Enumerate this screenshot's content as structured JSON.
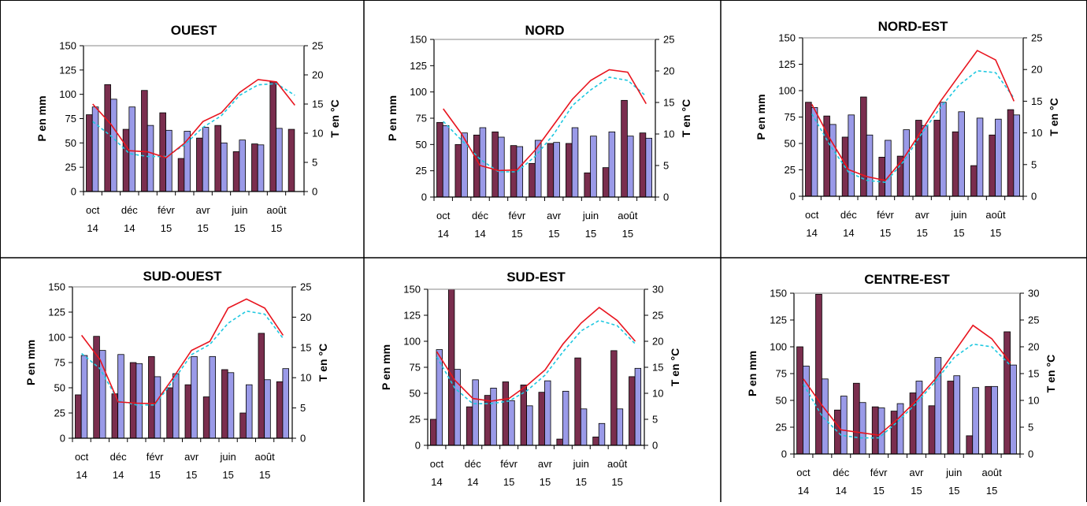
{
  "colors": {
    "bar_a": "#7a2e4e",
    "bar_b": "#9a9ae8",
    "line_red": "#e8141e",
    "line_cyan": "#1ec8e0"
  },
  "chart_data": [
    {
      "type": "bar",
      "title": "OUEST",
      "ylabel": "P en mm",
      "y2label": "T en °C",
      "ylim": [
        0,
        150
      ],
      "y2lim": [
        0,
        25
      ],
      "yticks": [
        "0",
        "25",
        "50",
        "75",
        "100",
        "125",
        "150"
      ],
      "y2ticks": [
        "0",
        "5",
        "10",
        "15",
        "20",
        "25"
      ],
      "xticks": [
        {
          "m": "oct",
          "y": "14"
        },
        {
          "m": "déc",
          "y": "14"
        },
        {
          "m": "févr",
          "y": "15"
        },
        {
          "m": "avr",
          "y": "15"
        },
        {
          "m": "juin",
          "y": "15"
        },
        {
          "m": "août",
          "y": "15"
        }
      ],
      "series": [
        {
          "values": [
            79,
            110,
            64,
            104,
            81,
            34,
            55,
            68,
            41,
            49,
            113,
            64
          ]
        },
        {
          "values": [
            87,
            95,
            87,
            68,
            63,
            62,
            66,
            50,
            53,
            48,
            65,
            null
          ]
        },
        {
          "values": [
            15,
            11.5,
            7,
            6.8,
            5.8,
            8.3,
            12,
            13.5,
            17,
            19.2,
            18.8,
            14.8
          ]
        },
        {
          "values": [
            12,
            9.5,
            6.5,
            6,
            6,
            8,
            11,
            13,
            16.5,
            18.3,
            18.5,
            16.5
          ]
        }
      ]
    },
    {
      "type": "bar",
      "title": "NORD",
      "ylabel": "P en mm",
      "y2label": "T en °C",
      "ylim": [
        0,
        150
      ],
      "y2lim": [
        0,
        25
      ],
      "yticks": [
        "0",
        "25",
        "50",
        "75",
        "100",
        "125",
        "150"
      ],
      "y2ticks": [
        "0",
        "5",
        "10",
        "15",
        "20",
        "25"
      ],
      "xticks": [
        {
          "m": "oct",
          "y": "14"
        },
        {
          "m": "déc",
          "y": "14"
        },
        {
          "m": "févr",
          "y": "15"
        },
        {
          "m": "avr",
          "y": "15"
        },
        {
          "m": "juin",
          "y": "15"
        },
        {
          "m": "août",
          "y": "15"
        }
      ],
      "series": [
        {
          "values": [
            71,
            50,
            59,
            62,
            49,
            32,
            51,
            51,
            23,
            28,
            92,
            61
          ]
        },
        {
          "values": [
            68,
            61,
            66,
            57,
            48,
            54,
            52,
            66,
            58,
            62,
            58,
            56
          ]
        },
        {
          "values": [
            14,
            10,
            5,
            4.2,
            4.3,
            7.5,
            11.5,
            15.5,
            18.5,
            20.2,
            19.8,
            14.8
          ]
        },
        {
          "values": [
            12,
            9,
            6,
            4,
            4,
            6.5,
            10,
            14.5,
            17,
            19,
            18.5,
            16
          ]
        }
      ]
    },
    {
      "type": "bar",
      "title": "NORD-EST",
      "ylabel": "P en mm",
      "y2label": "T en °C",
      "ylim": [
        0,
        150
      ],
      "y2lim": [
        0,
        25
      ],
      "yticks": [
        "0",
        "25",
        "50",
        "75",
        "100",
        "125",
        "150"
      ],
      "y2ticks": [
        "0",
        "5",
        "10",
        "15",
        "20",
        "25"
      ],
      "xticks": [
        {
          "m": "oct",
          "y": "14"
        },
        {
          "m": "déc",
          "y": "14"
        },
        {
          "m": "févr",
          "y": "15"
        },
        {
          "m": "avr",
          "y": "15"
        },
        {
          "m": "juin",
          "y": "15"
        },
        {
          "m": "août",
          "y": "15"
        }
      ],
      "series": [
        {
          "values": [
            89,
            76,
            56,
            94,
            37,
            38,
            72,
            72,
            61,
            29,
            58,
            82
          ]
        },
        {
          "values": [
            84,
            68,
            77,
            58,
            53,
            63,
            67,
            89,
            80,
            74,
            73,
            77
          ]
        },
        {
          "values": [
            14.5,
            9,
            4.2,
            3.1,
            2.5,
            6,
            10.5,
            15,
            19,
            23,
            21.5,
            15
          ]
        },
        {
          "values": [
            13,
            8,
            3.8,
            2.5,
            2.2,
            5.5,
            10,
            14,
            17.5,
            19.8,
            19.5,
            15.5
          ]
        }
      ]
    },
    {
      "type": "bar",
      "title": "SUD-OUEST",
      "ylabel": "P en mm",
      "y2label": "T en °C",
      "ylim": [
        0,
        150
      ],
      "y2lim": [
        0,
        25
      ],
      "yticks": [
        "0",
        "25",
        "50",
        "75",
        "100",
        "125",
        "150"
      ],
      "y2ticks": [
        "0",
        "5",
        "10",
        "15",
        "20",
        "25"
      ],
      "xticks": [
        {
          "m": "oct",
          "y": "14"
        },
        {
          "m": "déc",
          "y": "14"
        },
        {
          "m": "févr",
          "y": "15"
        },
        {
          "m": "avr",
          "y": "15"
        },
        {
          "m": "juin",
          "y": "15"
        },
        {
          "m": "août",
          "y": "15"
        }
      ],
      "series": [
        {
          "values": [
            43,
            101,
            44,
            75,
            81,
            50,
            53,
            41,
            68,
            25,
            104,
            56
          ]
        },
        {
          "values": [
            82,
            87,
            83,
            74,
            61,
            64,
            81,
            81,
            65,
            53,
            58,
            69
          ]
        },
        {
          "values": [
            17,
            13,
            6,
            5.8,
            5.7,
            10,
            14.5,
            16,
            21.5,
            23,
            21.5,
            17
          ]
        },
        {
          "values": [
            14,
            11.5,
            6.2,
            5.5,
            5.5,
            9.5,
            13.8,
            15.5,
            19,
            21,
            20.5,
            16.5
          ]
        }
      ]
    },
    {
      "type": "bar",
      "title": "SUD-EST",
      "ylabel": "P en mm",
      "y2label": "T en °C",
      "ylim": [
        0,
        150
      ],
      "y2lim": [
        0,
        30
      ],
      "yticks": [
        "0",
        "25",
        "50",
        "75",
        "100",
        "125",
        "150"
      ],
      "y2ticks": [
        "0",
        "5",
        "10",
        "15",
        "20",
        "25",
        "30"
      ],
      "xticks": [
        {
          "m": "oct",
          "y": "14"
        },
        {
          "m": "déc",
          "y": "14"
        },
        {
          "m": "févr",
          "y": "15"
        },
        {
          "m": "avr",
          "y": "15"
        },
        {
          "m": "juin",
          "y": "15"
        },
        {
          "m": "août",
          "y": "15"
        }
      ],
      "series": [
        {
          "values": [
            25,
            152,
            37,
            48,
            61,
            58,
            51,
            6,
            84,
            8,
            91,
            66
          ]
        },
        {
          "values": [
            92,
            73,
            63,
            55,
            43,
            38,
            62,
            52,
            35,
            21,
            35,
            74
          ]
        },
        {
          "values": [
            18,
            12.5,
            9,
            8.5,
            9,
            11.5,
            14.5,
            19.5,
            23.5,
            26.5,
            24,
            20
          ]
        },
        {
          "values": [
            17,
            11,
            8,
            8,
            8.5,
            10.5,
            13.5,
            18,
            22,
            24,
            23,
            19.5
          ]
        }
      ]
    },
    {
      "type": "bar",
      "title": "CENTRE-EST",
      "ylabel": "P en mm",
      "y2label": "T en °C",
      "ylim": [
        0,
        150
      ],
      "y2lim": [
        0,
        30
      ],
      "yticks": [
        "0",
        "25",
        "50",
        "75",
        "100",
        "125",
        "150"
      ],
      "y2ticks": [
        "0",
        "5",
        "10",
        "15",
        "20",
        "25",
        "30"
      ],
      "xticks": [
        {
          "m": "oct",
          "y": "14"
        },
        {
          "m": "déc",
          "y": "14"
        },
        {
          "m": "févr",
          "y": "15"
        },
        {
          "m": "avr",
          "y": "15"
        },
        {
          "m": "juin",
          "y": "15"
        },
        {
          "m": "août",
          "y": "15"
        }
      ],
      "series": [
        {
          "values": [
            100,
            149,
            41,
            66,
            44,
            40,
            57,
            45,
            68,
            17,
            63,
            114
          ]
        },
        {
          "values": [
            82,
            70,
            54,
            48,
            43,
            47,
            68,
            90,
            73,
            62,
            63,
            83
          ]
        },
        {
          "values": [
            14,
            9,
            4.5,
            4,
            3.5,
            6.5,
            10,
            14,
            19,
            24,
            21.5,
            17
          ]
        },
        {
          "values": [
            13,
            7,
            3.5,
            3,
            3,
            6,
            9.5,
            13.5,
            18,
            20.5,
            20,
            16.5
          ]
        }
      ]
    }
  ]
}
